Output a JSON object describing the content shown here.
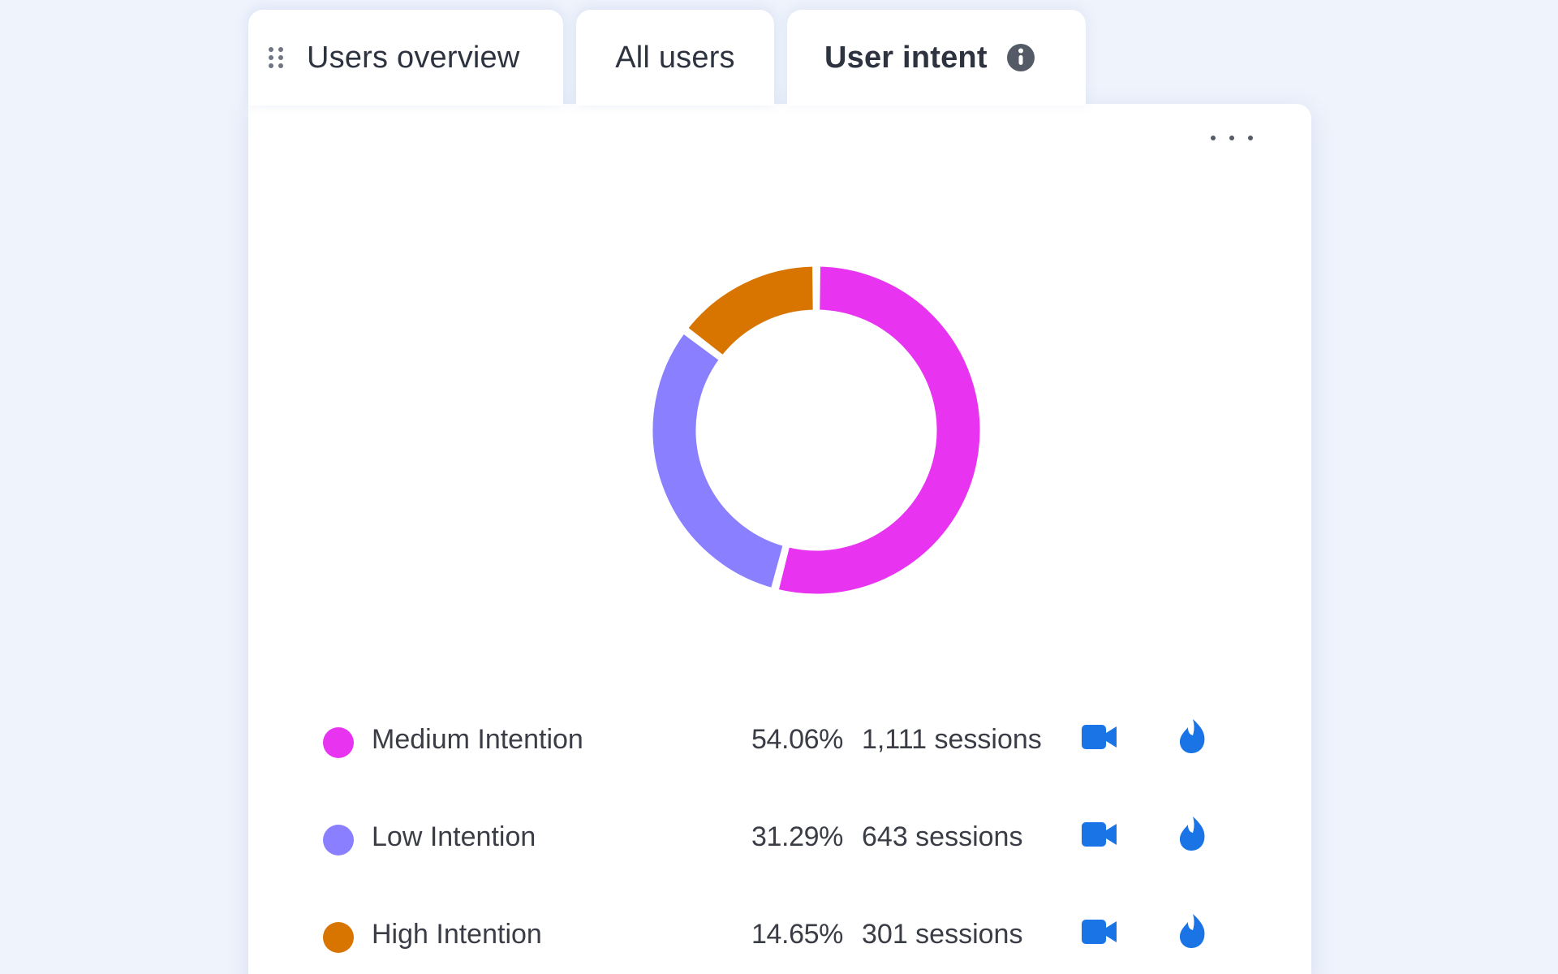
{
  "tabs": [
    {
      "label": "Users overview",
      "active": false
    },
    {
      "label": "All users",
      "active": false
    },
    {
      "label": "User intent",
      "active": true
    }
  ],
  "colors": {
    "medium": "#e834f0",
    "low": "#8a80ff",
    "high": "#d87400",
    "action_icon": "#1b74e6",
    "info_icon": "#555b66"
  },
  "icons": {
    "drag": "drag-handle-icon",
    "info": "info-icon",
    "menu": "more-options-icon",
    "video": "session-recording-icon",
    "heatmap": "heatmap-flame-icon"
  },
  "chart_data": {
    "type": "pie",
    "variant": "donut",
    "categories": [
      "Medium Intention",
      "Low Intention",
      "High Intention"
    ],
    "values": [
      54.06,
      31.29,
      14.65
    ],
    "sessions": [
      1111,
      643,
      301
    ],
    "colors": [
      "#e834f0",
      "#8a80ff",
      "#d87400"
    ]
  },
  "legend": [
    {
      "label": "Medium Intention",
      "percent": "54.06%",
      "sessions": "1,111 sessions"
    },
    {
      "label": "Low Intention",
      "percent": "31.29%",
      "sessions": "643 sessions"
    },
    {
      "label": "High Intention",
      "percent": "14.65%",
      "sessions": "301 sessions"
    }
  ]
}
